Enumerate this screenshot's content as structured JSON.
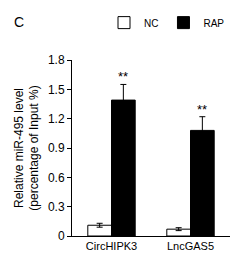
{
  "chart_data": {
    "type": "bar",
    "title": "C",
    "ylabel": [
      "Relative miR-495 level",
      "(percentage of Input %)"
    ],
    "categories": [
      "CircHIPK3",
      "LncGAS5"
    ],
    "series": [
      {
        "name": "NC",
        "color": "#ffffff",
        "values": [
          0.11,
          0.07
        ],
        "errors": [
          0.02,
          0.015
        ]
      },
      {
        "name": "RAP",
        "color": "#000000",
        "values": [
          1.39,
          1.08
        ],
        "errors": [
          0.16,
          0.14
        ]
      }
    ],
    "annotations": [
      {
        "text": "**",
        "category": "CircHIPK3",
        "series": "RAP"
      },
      {
        "text": "**",
        "category": "LncGAS5",
        "series": "RAP"
      }
    ],
    "ylim": [
      0,
      1.8
    ],
    "yticks": [
      0,
      0.3,
      0.6,
      0.9,
      1.2,
      1.5,
      1.8
    ],
    "grid": false,
    "legend": "top right"
  }
}
